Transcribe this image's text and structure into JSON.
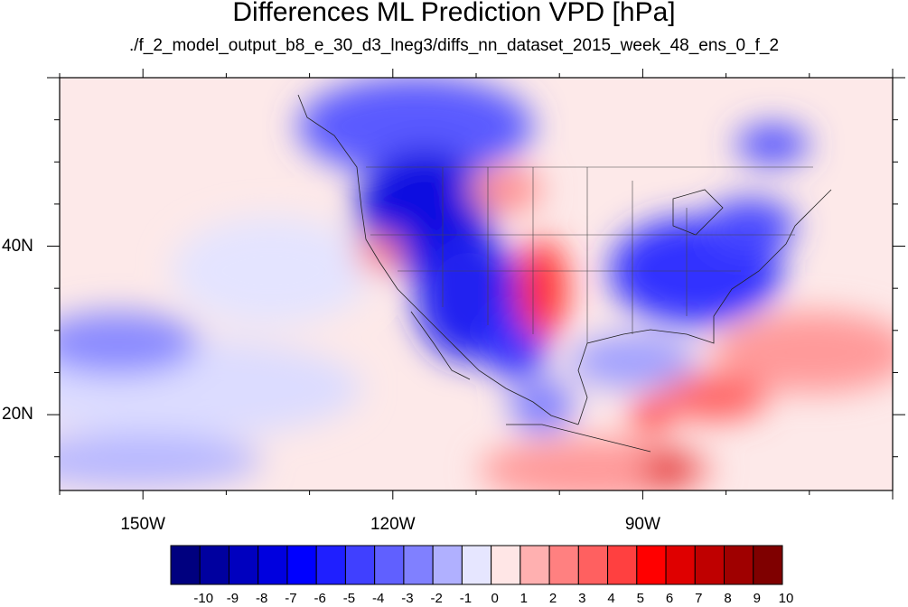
{
  "title": "Differences ML Prediction VPD [hPa]",
  "subtitle": "./f_2_model_output_b8_e_30_d3_lneg3/diffs_nn_dataset_2015_week_48_ens_0_f_2",
  "lat_labels": [
    {
      "text": "40N",
      "lat": 40
    },
    {
      "text": "20N",
      "lat": 20
    }
  ],
  "lon_labels": [
    {
      "text": "150W",
      "lon": -150
    },
    {
      "text": "120W",
      "lon": -120
    },
    {
      "text": "90W",
      "lon": -90
    }
  ],
  "map_extent": {
    "lon": [
      -160,
      -60
    ],
    "lat": [
      11,
      60
    ]
  },
  "colorbar": {
    "levels": [
      "-10",
      "-9",
      "-8",
      "-7",
      "-6",
      "-5",
      "-4",
      "-3",
      "-2",
      "-1",
      "0",
      "1",
      "2",
      "3",
      "4",
      "5",
      "6",
      "7",
      "8",
      "9",
      "10"
    ],
    "colors": [
      "#00007f",
      "#00009f",
      "#0000bf",
      "#0000df",
      "#0000ff",
      "#1f1fff",
      "#4040ff",
      "#6060ff",
      "#8080ff",
      "#b0b0ff",
      "#e6e6ff",
      "#ffe6e6",
      "#ffb0b0",
      "#ff8080",
      "#ff6060",
      "#ff4040",
      "#ff0000",
      "#df0000",
      "#bf0000",
      "#9f0000",
      "#7f0000"
    ]
  }
}
